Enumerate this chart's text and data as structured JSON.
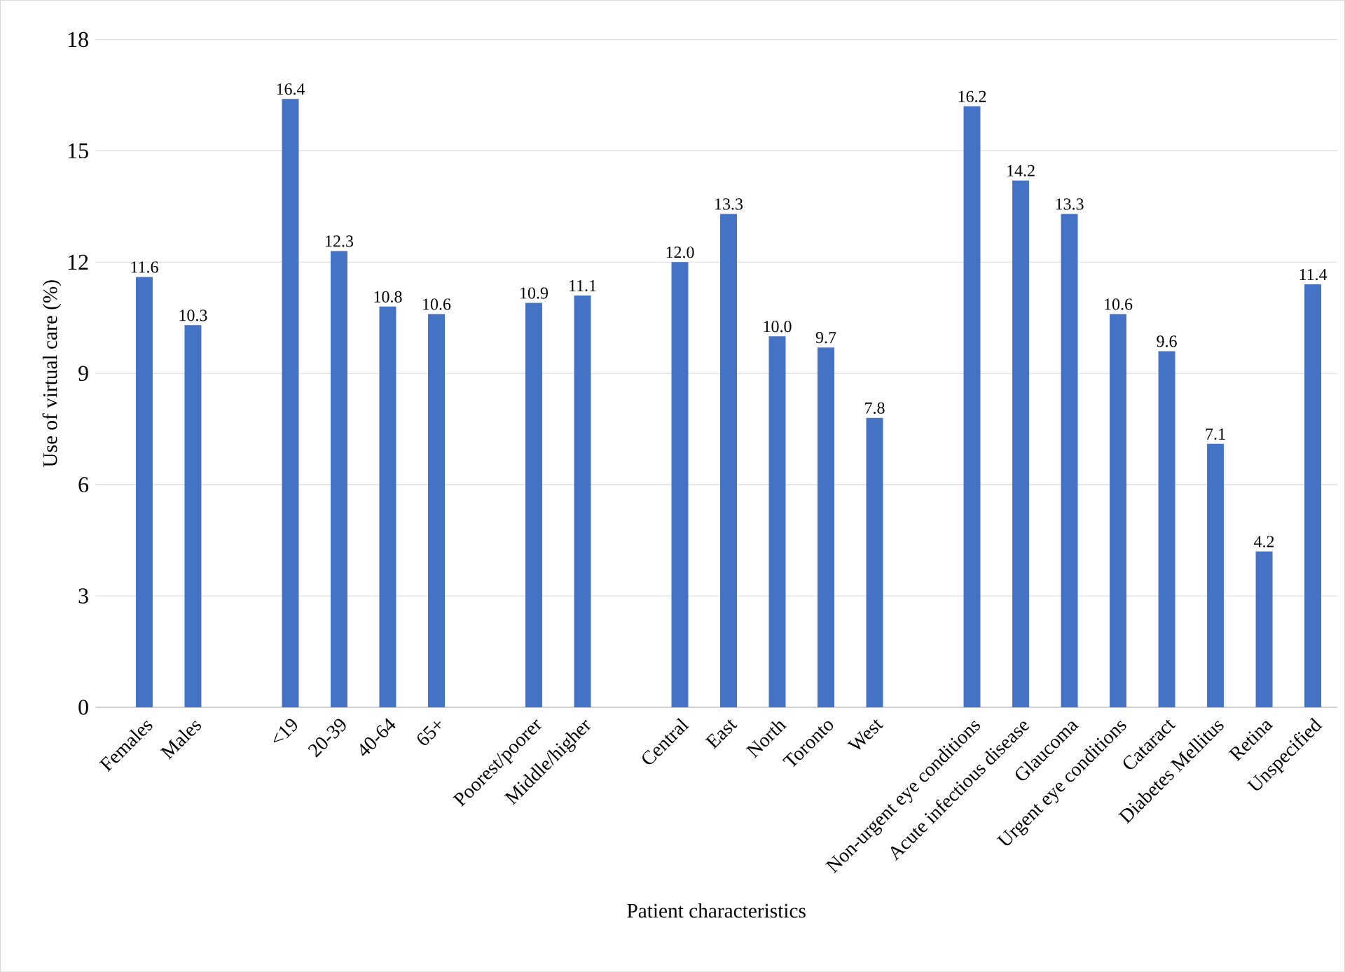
{
  "chart_data": {
    "type": "bar",
    "xlabel": "Patient characteristics",
    "ylabel": "Use of virtual care (%)",
    "categories": [
      "Females",
      "Males",
      null,
      "<19",
      "20-39",
      "40-64",
      "65+",
      null,
      "Poorest/poorer",
      "Middle/higher",
      null,
      "Central",
      "East",
      "North",
      "Toronto",
      "West",
      null,
      "Non-urgent eye conditions",
      "Acute infectious disease",
      "Glaucoma",
      "Urgent eye conditions",
      "Cataract",
      "Diabetes Mellitus",
      "Retina",
      "Unspecified"
    ],
    "values": [
      11.6,
      10.3,
      null,
      16.4,
      12.3,
      10.8,
      10.6,
      null,
      10.9,
      11.1,
      null,
      12.0,
      13.3,
      10.0,
      9.7,
      7.8,
      null,
      16.2,
      14.2,
      13.3,
      10.6,
      9.6,
      7.1,
      4.2,
      11.4
    ],
    "color": "#4472c4",
    "ylim": [
      0,
      18
    ],
    "yticks": [
      0,
      3,
      6,
      9,
      12,
      15,
      18
    ],
    "grid": "y",
    "value_labels": [
      "11.6",
      "10.3",
      null,
      "16.4",
      "12.3",
      "10.8",
      "10.6",
      null,
      "10.9",
      "11.1",
      null,
      "12.0",
      "13.3",
      "10.0",
      "9.7",
      "7.8",
      null,
      "16.2",
      "14.2",
      "13.3",
      "10.6",
      "9.6",
      "7.1",
      "4.2",
      "11.4"
    ]
  }
}
